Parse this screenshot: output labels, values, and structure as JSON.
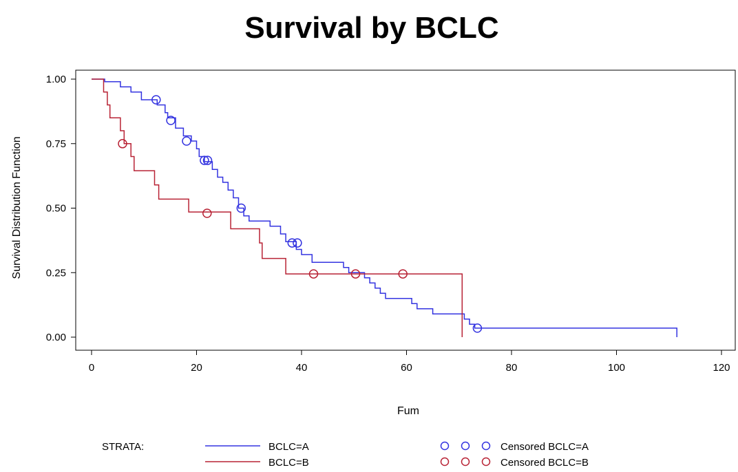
{
  "chart_data": {
    "type": "line",
    "title": "Survival by BCLC",
    "xlabel": "Fum",
    "ylabel": "Survival Distribution Function",
    "xlim": [
      0,
      120
    ],
    "ylim": [
      0,
      1
    ],
    "xticks": [
      "0",
      "20",
      "40",
      "60",
      "80",
      "100",
      "120"
    ],
    "yticks": [
      "0.00",
      "0.25",
      "0.50",
      "0.75",
      "1.00"
    ],
    "grid": false,
    "legend_placement": "bottom",
    "legend": {
      "strata_label": "STRATA:",
      "entries": [
        "BCLC=A",
        "BCLC=B"
      ],
      "censored_entries": [
        "Censored BCLC=A",
        "Censored BCLC=B"
      ]
    },
    "series": [
      {
        "name": "BCLC=A",
        "color": "#3333e0",
        "steps": [
          [
            0,
            1.0
          ],
          [
            2.5,
            1.0
          ],
          [
            2.5,
            0.99
          ],
          [
            5.5,
            0.99
          ],
          [
            5.5,
            0.97
          ],
          [
            7.5,
            0.97
          ],
          [
            7.5,
            0.95
          ],
          [
            9.5,
            0.95
          ],
          [
            9.5,
            0.92
          ],
          [
            12.5,
            0.92
          ],
          [
            12.5,
            0.9
          ],
          [
            14,
            0.9
          ],
          [
            14,
            0.87
          ],
          [
            14.5,
            0.87
          ],
          [
            14.5,
            0.85
          ],
          [
            16,
            0.85
          ],
          [
            16,
            0.81
          ],
          [
            17.5,
            0.81
          ],
          [
            17.5,
            0.78
          ],
          [
            19,
            0.78
          ],
          [
            19,
            0.76
          ],
          [
            20,
            0.76
          ],
          [
            20,
            0.73
          ],
          [
            20.5,
            0.73
          ],
          [
            20.5,
            0.7
          ],
          [
            21.5,
            0.7
          ],
          [
            21.5,
            0.68
          ],
          [
            23,
            0.68
          ],
          [
            23,
            0.65
          ],
          [
            24,
            0.65
          ],
          [
            24,
            0.62
          ],
          [
            25,
            0.62
          ],
          [
            25,
            0.6
          ],
          [
            26,
            0.6
          ],
          [
            26,
            0.57
          ],
          [
            27,
            0.57
          ],
          [
            27,
            0.54
          ],
          [
            28,
            0.54
          ],
          [
            28,
            0.5
          ],
          [
            29,
            0.5
          ],
          [
            29,
            0.47
          ],
          [
            30,
            0.47
          ],
          [
            30,
            0.45
          ],
          [
            34,
            0.45
          ],
          [
            34,
            0.43
          ],
          [
            36,
            0.43
          ],
          [
            36,
            0.4
          ],
          [
            37,
            0.4
          ],
          [
            37,
            0.37
          ],
          [
            39,
            0.37
          ],
          [
            39,
            0.34
          ],
          [
            40,
            0.34
          ],
          [
            40,
            0.32
          ],
          [
            42,
            0.32
          ],
          [
            42,
            0.29
          ],
          [
            48,
            0.29
          ],
          [
            48,
            0.27
          ],
          [
            49,
            0.27
          ],
          [
            49,
            0.25
          ],
          [
            52,
            0.25
          ],
          [
            52,
            0.23
          ],
          [
            53,
            0.23
          ],
          [
            53,
            0.21
          ],
          [
            54,
            0.21
          ],
          [
            54,
            0.19
          ],
          [
            55,
            0.19
          ],
          [
            55,
            0.17
          ],
          [
            56,
            0.17
          ],
          [
            56,
            0.15
          ],
          [
            61,
            0.15
          ],
          [
            61,
            0.13
          ],
          [
            62,
            0.13
          ],
          [
            62,
            0.11
          ],
          [
            65,
            0.11
          ],
          [
            65,
            0.09
          ],
          [
            71,
            0.09
          ],
          [
            71,
            0.07
          ],
          [
            72,
            0.07
          ],
          [
            72,
            0.05
          ],
          [
            73,
            0.05
          ],
          [
            73,
            0.035
          ],
          [
            111.5,
            0.035
          ],
          [
            111.5,
            0.0
          ]
        ],
        "censored": [
          [
            12.3,
            0.92
          ],
          [
            15.1,
            0.84
          ],
          [
            18.1,
            0.76
          ],
          [
            21.5,
            0.685
          ],
          [
            22.1,
            0.685
          ],
          [
            28.5,
            0.5
          ],
          [
            38.2,
            0.365
          ],
          [
            39.2,
            0.365
          ],
          [
            73.5,
            0.035
          ]
        ]
      },
      {
        "name": "BCLC=B",
        "color": "#b82234",
        "steps": [
          [
            0,
            1.0
          ],
          [
            2.3,
            1.0
          ],
          [
            2.3,
            0.95
          ],
          [
            3.0,
            0.95
          ],
          [
            3.0,
            0.9
          ],
          [
            3.5,
            0.9
          ],
          [
            3.5,
            0.85
          ],
          [
            5.5,
            0.85
          ],
          [
            5.5,
            0.8
          ],
          [
            6.2,
            0.8
          ],
          [
            6.2,
            0.75
          ],
          [
            7.5,
            0.75
          ],
          [
            7.5,
            0.7
          ],
          [
            8.1,
            0.7
          ],
          [
            8.1,
            0.645
          ],
          [
            12.0,
            0.645
          ],
          [
            12.0,
            0.59
          ],
          [
            12.8,
            0.59
          ],
          [
            12.8,
            0.535
          ],
          [
            18.5,
            0.535
          ],
          [
            18.5,
            0.485
          ],
          [
            26.5,
            0.485
          ],
          [
            26.5,
            0.42
          ],
          [
            32,
            0.42
          ],
          [
            32,
            0.365
          ],
          [
            32.5,
            0.365
          ],
          [
            32.5,
            0.305
          ],
          [
            37,
            0.305
          ],
          [
            37,
            0.245
          ],
          [
            70.6,
            0.245
          ],
          [
            70.6,
            0.0
          ]
        ],
        "censored": [
          [
            5.9,
            0.75
          ],
          [
            22,
            0.48
          ],
          [
            42.3,
            0.245
          ],
          [
            50.3,
            0.245
          ],
          [
            59.3,
            0.245
          ]
        ]
      }
    ]
  }
}
